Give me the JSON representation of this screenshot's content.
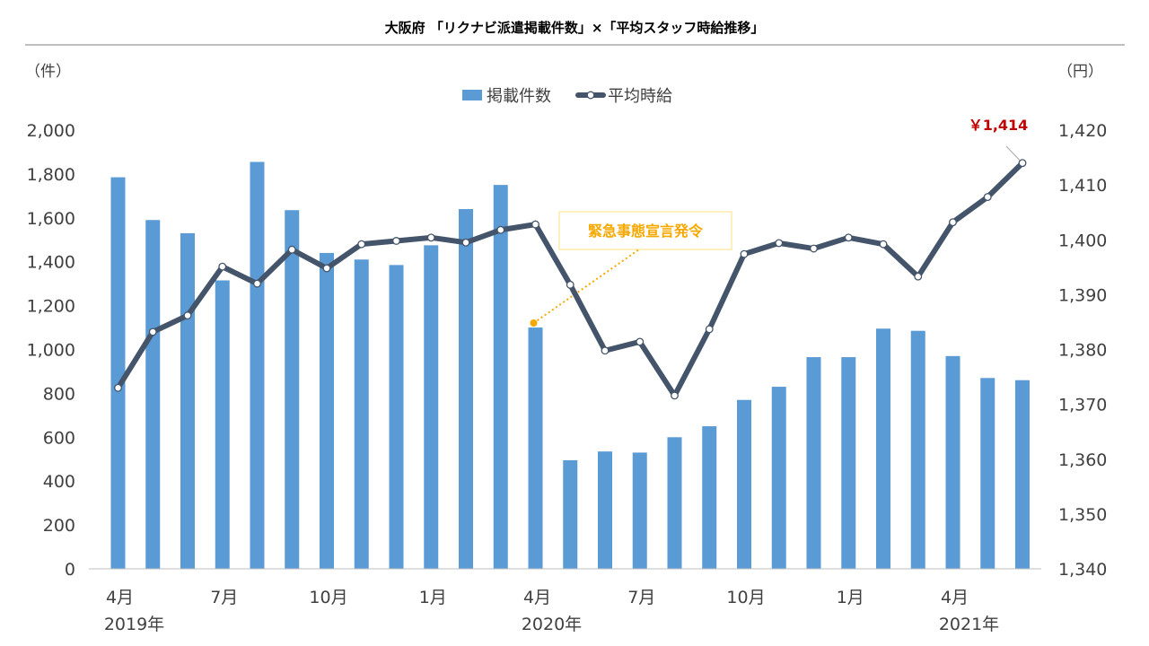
{
  "chart_data": {
    "type": "bar+line",
    "title": "大阪府 「リクナビ派遣掲載件数」×「平均スタッフ時給推移」",
    "y_left": {
      "unit": "（件）",
      "min": 0,
      "max": 2000,
      "ticks": [
        "0",
        "200",
        "400",
        "600",
        "800",
        "1,000",
        "1,200",
        "1,400",
        "1,600",
        "1,800",
        "2,000"
      ]
    },
    "y_right": {
      "unit": "（円）",
      "min": 1340,
      "max": 1420,
      "ticks": [
        "1,340",
        "1,350",
        "1,360",
        "1,370",
        "1,380",
        "1,390",
        "1,400",
        "1,410",
        "1,420"
      ]
    },
    "x_ticks": [
      "4月",
      "7月",
      "10月",
      "1月",
      "4月",
      "7月",
      "10月",
      "1月",
      "4月"
    ],
    "x_tick_index": [
      0,
      3,
      6,
      9,
      12,
      15,
      18,
      21,
      24
    ],
    "year_labels": [
      "2019年",
      "2020年",
      "2021年"
    ],
    "year_index": [
      0,
      12,
      24
    ],
    "series": [
      {
        "name": "掲載件数",
        "kind": "bar",
        "axis": "left",
        "color": "#5B9BD5",
        "values": [
          1785,
          1590,
          1530,
          1315,
          1855,
          1635,
          1440,
          1410,
          1385,
          1475,
          1640,
          1750,
          1100,
          495,
          535,
          530,
          600,
          650,
          770,
          830,
          965,
          965,
          1095,
          1085,
          970,
          870,
          860
        ]
      },
      {
        "name": "平均時給",
        "kind": "line",
        "axis": "right",
        "color": "#44546A",
        "values": [
          1373,
          1383.2,
          1386.2,
          1395.1,
          1392,
          1398.2,
          1394.8,
          1399.2,
          1399.8,
          1400.4,
          1399.5,
          1401.8,
          1402.8,
          1391.8,
          1379.8,
          1381.4,
          1371.6,
          1383.7,
          1397.4,
          1399.4,
          1398.4,
          1400.4,
          1399.2,
          1393.3,
          1403.2,
          1407.8,
          1414
        ]
      }
    ],
    "legend_position": "top",
    "annotations": [
      {
        "text": "緊急事態宣言発令",
        "index": 12,
        "color": "#F5A800"
      },
      {
        "text": "￥1,414",
        "index": 26,
        "color": "#C00000"
      }
    ],
    "grid": false
  }
}
